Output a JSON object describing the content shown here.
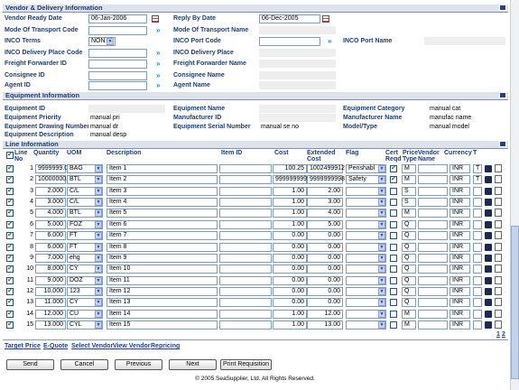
{
  "sections": {
    "vendor": "Vendor & Delivery Information",
    "equipment": "Equipment Information",
    "line": "Line Information"
  },
  "vendor_fields": [
    {
      "label": "Vendor Ready Date",
      "value": "06-Jan-2006"
    },
    {
      "label": "Reply By Date",
      "value": "06-Dec-2005"
    },
    {
      "label": "Mode Of Transport Code"
    },
    {
      "label": "Mode Of Transport Name"
    },
    {
      "label": "INCO Terms",
      "value": "NON"
    },
    {
      "label": "INCO Port Code"
    },
    {
      "label": "INCO Port Name"
    },
    {
      "label": "INCO Delivery Place Code"
    },
    {
      "label": "INCO Delivery Place"
    },
    {
      "label": "Freight Forwarder ID"
    },
    {
      "label": "Freight Forwarder Name"
    },
    {
      "label": "Consignee ID"
    },
    {
      "label": "Consignee Name"
    },
    {
      "label": "Agent ID"
    },
    {
      "label": "Agent Name"
    }
  ],
  "equipment_fields": [
    {
      "label": "Equipment ID"
    },
    {
      "label": "Equipment Name"
    },
    {
      "label": "Equipment Category",
      "value": "manual cat"
    },
    {
      "label": "Equipment Priority",
      "value": "manual pri"
    },
    {
      "label": "Manufacturer ID"
    },
    {
      "label": "Manufacturer Name",
      "value": "manufac name"
    },
    {
      "label": "Equipment Drawing Number",
      "value": "manual dr"
    },
    {
      "label": "Equipment Serial Number",
      "value": "manual se no"
    },
    {
      "label": "Model/Type",
      "value": "manual model"
    },
    {
      "label": "Equipment Description",
      "value": "manual desp"
    }
  ],
  "table": {
    "columns": [
      "Line No",
      "Quantity",
      "UOM",
      "Description",
      "Item ID",
      "Cost",
      "Extended Cost",
      "Flag",
      "Cert Reqd",
      "Price Type",
      "Vendor Name",
      "Currency",
      "T"
    ],
    "rows": [
      {
        "no": "1",
        "qty": "9999999.0",
        "uom": "BAG",
        "desc": "Item 1",
        "cost": "100.25",
        "ext": "1002499912",
        "flag": "Perishabl",
        "cert": true,
        "ptype": "M",
        "cur": "INR",
        "t": "T"
      },
      {
        "no": "2",
        "qty": "10000000.",
        "uom": "BTL",
        "desc": "Item 2",
        "cost": "999999999",
        "ext": "9999999998",
        "flag": "Safety",
        "cert": true,
        "ptype": "M",
        "cur": "INR",
        "t": "T"
      },
      {
        "no": "3",
        "qty": "2.000",
        "uom": "C/L",
        "desc": "Item 3",
        "cost": "1.00",
        "ext": "2.00",
        "cert": false,
        "ptype": "S",
        "cur": "INR"
      },
      {
        "no": "4",
        "qty": "3.000",
        "uom": "C/L",
        "desc": "Item 4",
        "cost": "1.00",
        "ext": "3.00",
        "cert": false,
        "ptype": "S",
        "cur": "INR"
      },
      {
        "no": "5",
        "qty": "4.000",
        "uom": "BTL",
        "desc": "Item 5",
        "cost": "1.00",
        "ext": "4.00",
        "cert": false,
        "ptype": "M",
        "cur": "INR"
      },
      {
        "no": "6",
        "qty": "5.000",
        "uom": "FOZ",
        "desc": "Item 6",
        "cost": "1.00",
        "ext": "5.00",
        "cert": false,
        "ptype": "Q",
        "cur": "INR"
      },
      {
        "no": "7",
        "qty": "6.000",
        "uom": "FT",
        "desc": "Item 7",
        "cost": "0.00",
        "ext": "0.00",
        "cert": false,
        "ptype": "Q",
        "cur": "INR"
      },
      {
        "no": "8",
        "qty": "6.000",
        "uom": "FT",
        "desc": "Item 8",
        "cost": "0.00",
        "ext": "0.00",
        "cert": false,
        "ptype": "Q",
        "cur": "INR"
      },
      {
        "no": "9",
        "qty": "7.000",
        "uom": "ehg",
        "desc": "Item 9",
        "cost": "0.00",
        "ext": "0.00",
        "cert": false,
        "ptype": "Q",
        "cur": "INR"
      },
      {
        "no": "10",
        "qty": "8.000",
        "uom": "CY",
        "desc": "Item 10",
        "cost": "0.00",
        "ext": "0.00",
        "cert": false,
        "ptype": "Q",
        "cur": "INR"
      },
      {
        "no": "11",
        "qty": "9.000",
        "uom": "DOZ",
        "desc": "Item 11",
        "cost": "0.00",
        "ext": "0.00",
        "cert": false,
        "ptype": "Q",
        "cur": "INR"
      },
      {
        "no": "12",
        "qty": "10.000",
        "uom": "123",
        "desc": "Item 12",
        "cost": "0.00",
        "ext": "0.00",
        "cert": false,
        "ptype": "Q",
        "cur": "INR"
      },
      {
        "no": "13",
        "qty": "11.000",
        "uom": "CY",
        "desc": "Item 13",
        "cost": "0.00",
        "ext": "0.00",
        "cert": false,
        "ptype": "Q",
        "cur": "INR"
      },
      {
        "no": "14",
        "qty": "12.000",
        "uom": "CU",
        "desc": "Item 14",
        "cost": "1.00",
        "ext": "12.00",
        "cert": false,
        "ptype": "M",
        "cur": "INR"
      },
      {
        "no": "15",
        "qty": "13.000",
        "uom": "CYL",
        "desc": "Item 15",
        "cost": "1.00",
        "ext": "13.00",
        "cert": false,
        "ptype": "M",
        "cur": "INR"
      }
    ]
  },
  "pages": [
    "1",
    "2"
  ],
  "links": [
    "Target Price",
    "E-Quote",
    "Select Vendor",
    "View Vendor",
    "Repricing"
  ],
  "buttons": [
    "Send",
    "Cancel",
    "Previous",
    "Next",
    "Print Requisition"
  ],
  "footer": "© 2005 SeaSupplier, Ltd. All Rights Reserved."
}
